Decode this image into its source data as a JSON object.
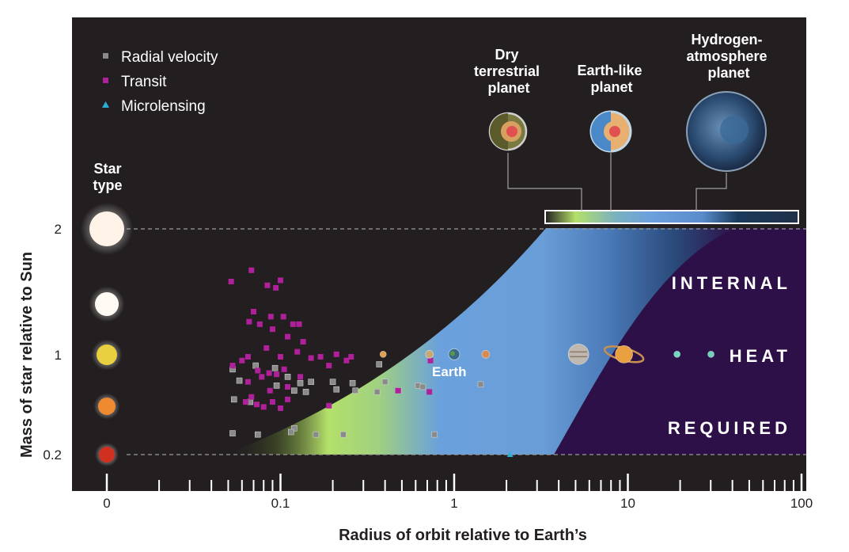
{
  "chart_data": {
    "type": "scatter",
    "x_scale": "log",
    "xlim": [
      0.01,
      100
    ],
    "ylim": [
      0.2,
      2
    ],
    "xlabel": "Radius of orbit relative to Earth’s",
    "ylabel": "Mass of star relative to Sun",
    "x_ticks": [
      {
        "label": "0",
        "value": 0.01
      },
      {
        "label": "0.1",
        "value": 0.1
      },
      {
        "label": "1",
        "value": 1
      },
      {
        "label": "10",
        "value": 10
      },
      {
        "label": "100",
        "value": 100
      }
    ],
    "y_ticks": [
      {
        "label": "2",
        "value": 2
      },
      {
        "label": "1",
        "value": 1
      },
      {
        "label": "0.2",
        "value": 0.2
      }
    ],
    "star_type_label": "Star type",
    "star_types": [
      {
        "mass": 2,
        "color": "#fff2e6"
      },
      {
        "mass": 1.4,
        "color": "#fffaf4"
      },
      {
        "mass": 1,
        "color": "#e8d040"
      },
      {
        "mass": 0.6,
        "color": "#f08a30"
      },
      {
        "mass": 0.2,
        "color": "#d03020"
      }
    ],
    "legend": [
      {
        "name": "Radial velocity",
        "marker": "square",
        "color": "#8a8a8a"
      },
      {
        "name": "Transit",
        "marker": "square",
        "color": "#b0209a"
      },
      {
        "name": "Microlensing",
        "marker": "triangle",
        "color": "#2ab0d8"
      }
    ],
    "series": [
      {
        "name": "Radial velocity",
        "points": [
          [
            0.072,
            0.91
          ],
          [
            0.093,
            0.89
          ],
          [
            0.053,
            0.88
          ],
          [
            0.058,
            0.79
          ],
          [
            0.11,
            0.82
          ],
          [
            0.13,
            0.77
          ],
          [
            0.15,
            0.78
          ],
          [
            0.095,
            0.75
          ],
          [
            0.12,
            0.71
          ],
          [
            0.2,
            0.78
          ],
          [
            0.21,
            0.72
          ],
          [
            0.26,
            0.77
          ],
          [
            0.27,
            0.71
          ],
          [
            0.37,
            0.92
          ],
          [
            0.4,
            0.78
          ],
          [
            0.36,
            0.7
          ],
          [
            0.48,
            0.71
          ],
          [
            0.62,
            0.75
          ],
          [
            0.66,
            0.74
          ],
          [
            1.42,
            0.76
          ],
          [
            0.054,
            0.64
          ],
          [
            0.067,
            0.62
          ],
          [
            0.14,
            0.7
          ],
          [
            0.053,
            0.37
          ],
          [
            0.074,
            0.36
          ],
          [
            0.12,
            0.41
          ],
          [
            0.115,
            0.38
          ],
          [
            0.16,
            0.36
          ],
          [
            0.23,
            0.36
          ],
          [
            0.77,
            0.36
          ]
        ]
      },
      {
        "name": "Transit",
        "points": [
          [
            0.052,
            1.58
          ],
          [
            0.068,
            1.67
          ],
          [
            0.084,
            1.55
          ],
          [
            0.094,
            1.53
          ],
          [
            0.1,
            1.59
          ],
          [
            0.07,
            1.34
          ],
          [
            0.076,
            1.24
          ],
          [
            0.088,
            1.3
          ],
          [
            0.104,
            1.3
          ],
          [
            0.118,
            1.24
          ],
          [
            0.128,
            1.24
          ],
          [
            0.135,
            1.1
          ],
          [
            0.066,
            1.26
          ],
          [
            0.09,
            1.2
          ],
          [
            0.11,
            1.14
          ],
          [
            0.125,
            1.02
          ],
          [
            0.083,
            1.05
          ],
          [
            0.06,
            0.95
          ],
          [
            0.065,
            0.98
          ],
          [
            0.1,
            0.98
          ],
          [
            0.074,
            0.87
          ],
          [
            0.086,
            0.85
          ],
          [
            0.095,
            0.84
          ],
          [
            0.105,
            0.88
          ],
          [
            0.13,
            0.82
          ],
          [
            0.15,
            0.97
          ],
          [
            0.17,
            0.98
          ],
          [
            0.19,
            0.91
          ],
          [
            0.21,
            1.0
          ],
          [
            0.24,
            0.95
          ],
          [
            0.255,
            0.98
          ],
          [
            0.053,
            0.91
          ],
          [
            0.065,
            0.78
          ],
          [
            0.078,
            0.82
          ],
          [
            0.087,
            0.71
          ],
          [
            0.11,
            0.74
          ],
          [
            0.11,
            0.64
          ],
          [
            0.073,
            0.6
          ],
          [
            0.063,
            0.62
          ],
          [
            0.09,
            0.62
          ],
          [
            0.475,
            0.71
          ],
          [
            0.72,
            0.7
          ],
          [
            0.73,
            0.95
          ],
          [
            0.068,
            0.66
          ],
          [
            0.08,
            0.58
          ],
          [
            0.1,
            0.57
          ],
          [
            0.19,
            0.59
          ]
        ]
      },
      {
        "name": "Microlensing",
        "points": [
          [
            2.1,
            0.2
          ]
        ]
      }
    ],
    "solar_system": [
      {
        "name": "Mercury",
        "x": 0.39,
        "y": 1,
        "color": "#e0a050"
      },
      {
        "name": "Venus",
        "x": 0.72,
        "y": 1,
        "color": "#c8a870"
      },
      {
        "name": "Earth",
        "x": 1.0,
        "y": 1,
        "color": "#3a6a8a"
      },
      {
        "name": "Mars",
        "x": 1.52,
        "y": 1,
        "color": "#d88a50"
      },
      {
        "name": "Jupiter",
        "x": 5.2,
        "y": 1,
        "color": "#c0b8b0"
      },
      {
        "name": "Saturn",
        "x": 9.5,
        "y": 1,
        "color": "#e8a040"
      },
      {
        "name": "Uranus",
        "x": 19.2,
        "y": 1,
        "color": "#70d8c0"
      },
      {
        "name": "Neptune",
        "x": 30.1,
        "y": 1,
        "color": "#70d0b8"
      }
    ],
    "earth_label": "Earth",
    "region_labels": [
      "INTERNAL",
      "HEAT",
      "REQUIRED"
    ],
    "planet_types": [
      {
        "label": "Dry terrestrial planet",
        "lines": [
          "Dry",
          "terrestrial",
          "planet"
        ]
      },
      {
        "label": "Earth-like planet",
        "lines": [
          "Earth-like",
          "planet"
        ]
      },
      {
        "label": "Hydrogen-atmosphere planet",
        "lines": [
          "Hydrogen-",
          "atmosphere",
          "planet"
        ]
      }
    ],
    "colors": {
      "background": "#231f20",
      "heat_region": "#2e1048",
      "zone_green": "#b4e06a",
      "zone_blue": "#6aa0dc",
      "zone_dark": "#1a3a5c"
    }
  }
}
